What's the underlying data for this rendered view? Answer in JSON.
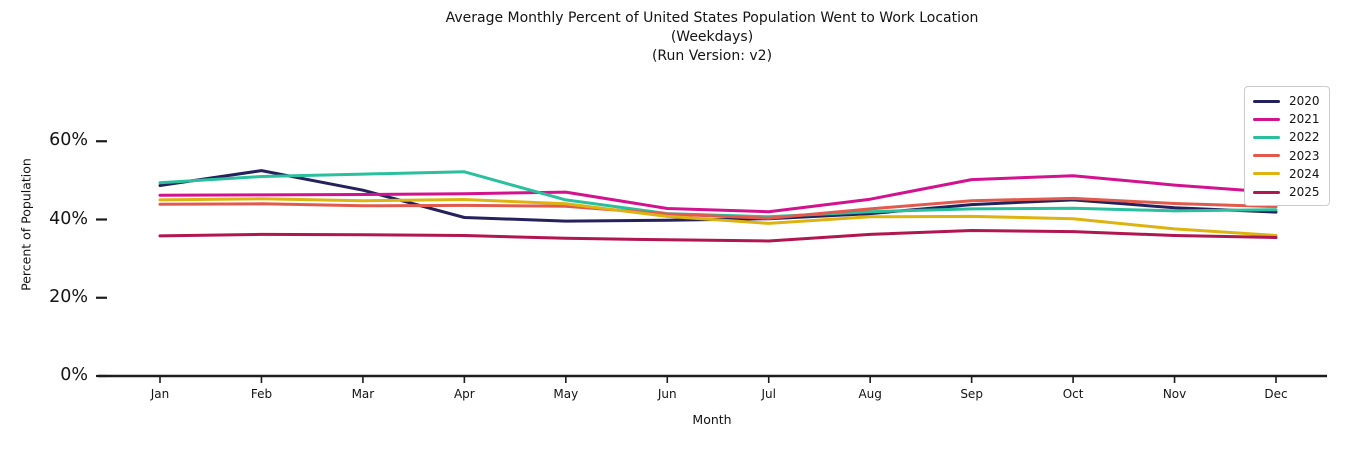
{
  "chart_data": {
    "type": "line",
    "title": "Average Monthly Percent of United States Population Went to Work Location",
    "subtitle_lines": [
      "(Weekdays)",
      "(Run Version: v2)"
    ],
    "xlabel": "Month",
    "ylabel": "Percent of Population",
    "categories": [
      "Jan",
      "Feb",
      "Mar",
      "Apr",
      "May",
      "Jun",
      "Jul",
      "Aug",
      "Sep",
      "Oct",
      "Nov",
      "Dec"
    ],
    "ytick_labels": [
      "0%",
      "20%",
      "40%",
      "60%"
    ],
    "ytick_values": [
      0,
      20,
      40,
      60
    ],
    "ylim": [
      0,
      73
    ],
    "grid": false,
    "legend_position": "upper right",
    "axis_color": "#1c1c1c",
    "series": [
      {
        "name": "2020",
        "color": "#24215c",
        "values": [
          48.7,
          52.5,
          47.5,
          40.5,
          39.6,
          39.8,
          40.2,
          41.5,
          43.8,
          45.0,
          43.0,
          41.9
        ]
      },
      {
        "name": "2021",
        "color": "#d2128e",
        "values": [
          46.2,
          46.3,
          46.4,
          46.6,
          47.0,
          42.8,
          42.0,
          45.2,
          50.2,
          51.2,
          48.8,
          46.9
        ]
      },
      {
        "name": "2022",
        "color": "#2abf9d",
        "values": [
          49.4,
          51.0,
          51.6,
          52.2,
          45.0,
          41.5,
          40.7,
          42.0,
          42.7,
          42.9,
          42.2,
          42.5
        ]
      },
      {
        "name": "2023",
        "color": "#e25a4d",
        "values": [
          43.9,
          44.0,
          43.5,
          43.6,
          43.4,
          41.4,
          40.3,
          42.7,
          44.8,
          45.4,
          44.1,
          43.3
        ]
      },
      {
        "name": "2024",
        "color": "#dcb310",
        "values": [
          45.0,
          45.3,
          44.8,
          45.1,
          44.0,
          40.8,
          39.0,
          40.7,
          40.8,
          40.2,
          37.6,
          35.9
        ]
      },
      {
        "name": "2025",
        "color": "#b0164f",
        "values": [
          35.8,
          36.2,
          36.1,
          35.9,
          35.2,
          34.8,
          34.5,
          36.2,
          37.2,
          36.9,
          35.9,
          35.4
        ]
      }
    ]
  }
}
